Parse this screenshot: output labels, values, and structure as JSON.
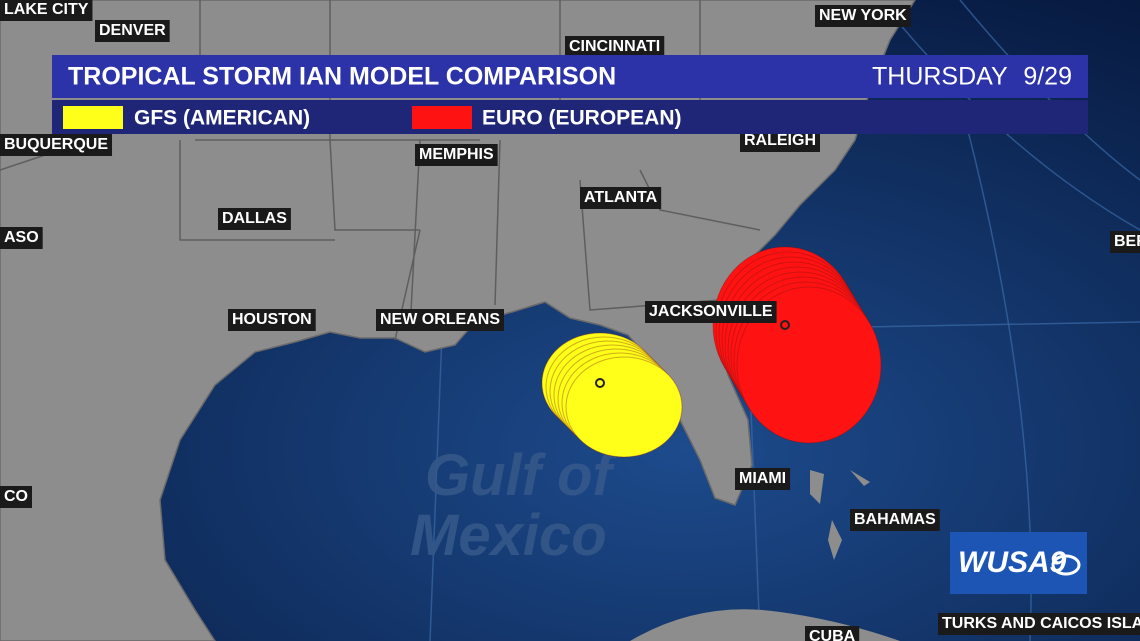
{
  "header": {
    "title": "TROPICAL STORM IAN MODEL COMPARISON",
    "day": "THURSDAY",
    "date": "9/29"
  },
  "legend": [
    {
      "label": "GFS (AMERICAN)",
      "color": "#ffff1a"
    },
    {
      "label": "EURO (EUROPEAN)",
      "color": "#ff1212"
    }
  ],
  "places": [
    "LAKE CITY",
    "DENVER",
    "CINCINNATI",
    "NEW YORK",
    "BUQUERQUE",
    "MEMPHIS",
    "RALEIGH",
    "ATLANTA",
    "DALLAS",
    "ASO",
    "BER",
    "HOUSTON",
    "NEW ORLEANS",
    "JACKSONVILLE",
    "MIAMI",
    "CO",
    "BAHAMAS",
    "TURKS AND CAICOS ISLA",
    "CUBA"
  ],
  "water_label": [
    "Gulf of",
    "Mexico"
  ],
  "logo": "WUSA9"
}
